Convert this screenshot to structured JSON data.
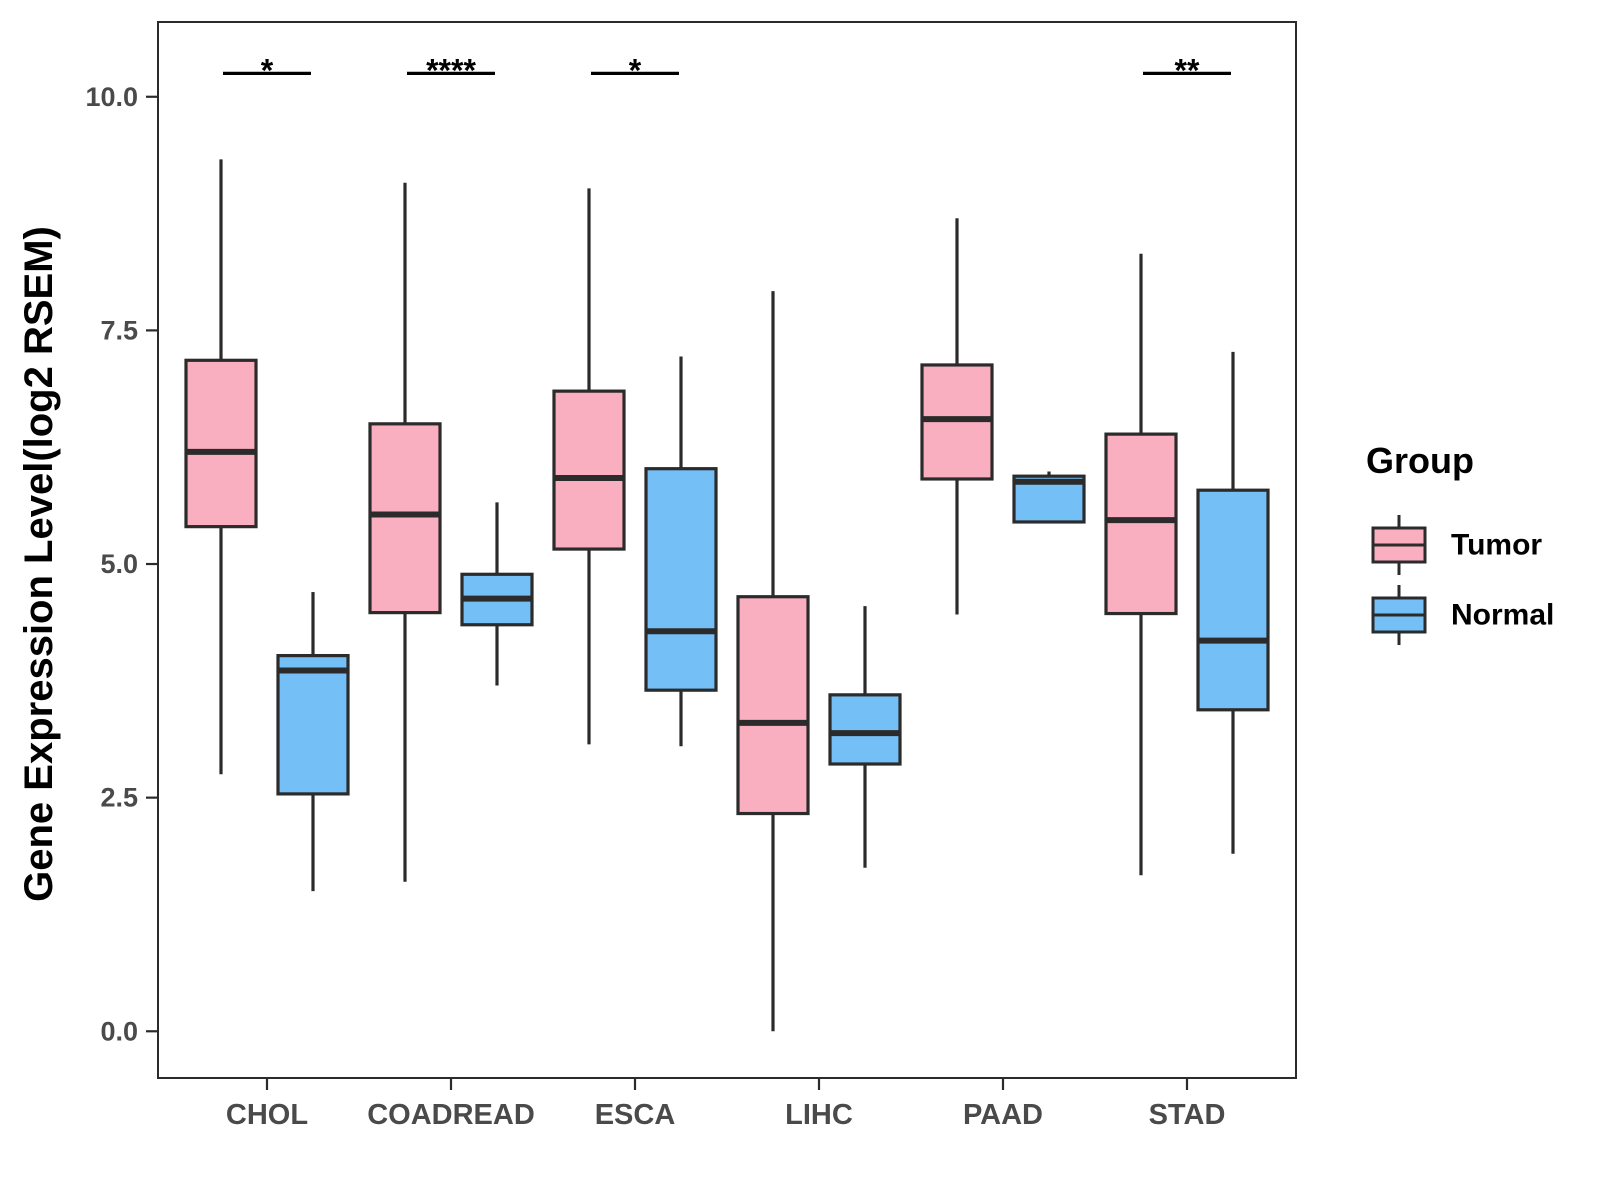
{
  "chart_data": {
    "type": "boxplot",
    "title": "",
    "xlabel": "",
    "ylabel": "Gene Expression Level(log2 RSEM)",
    "ylim": [
      -0.5,
      10.8
    ],
    "yticks": [
      0.0,
      2.5,
      5.0,
      7.5,
      10.0
    ],
    "ytick_labels": [
      "0.0",
      "2.5",
      "5.0",
      "7.5",
      "10.0"
    ],
    "categories": [
      "CHOL",
      "COADREAD",
      "ESCA",
      "LIHC",
      "PAAD",
      "STAD"
    ],
    "legend": {
      "title": "Group",
      "placement": "right",
      "entries": [
        "Tumor",
        "Normal"
      ]
    },
    "series": [
      {
        "name": "Tumor",
        "color": "#FAAFC0",
        "boxes": [
          {
            "category": "CHOL",
            "whisker_low": 2.75,
            "q1": 5.4,
            "median": 6.2,
            "q3": 7.18,
            "whisker_high": 9.33
          },
          {
            "category": "COADREAD",
            "whisker_low": 1.6,
            "q1": 4.48,
            "median": 5.53,
            "q3": 6.5,
            "whisker_high": 9.08
          },
          {
            "category": "ESCA",
            "whisker_low": 3.07,
            "q1": 5.16,
            "median": 5.92,
            "q3": 6.85,
            "whisker_high": 9.02
          },
          {
            "category": "LIHC",
            "whisker_low": 0.0,
            "q1": 2.33,
            "median": 3.3,
            "q3": 4.65,
            "whisker_high": 7.92
          },
          {
            "category": "PAAD",
            "whisker_low": 4.46,
            "q1": 5.91,
            "median": 6.55,
            "q3": 7.13,
            "whisker_high": 8.7
          },
          {
            "category": "STAD",
            "whisker_low": 1.67,
            "q1": 4.47,
            "median": 5.47,
            "q3": 6.39,
            "whisker_high": 8.32
          }
        ]
      },
      {
        "name": "Normal",
        "color": "#75BFF7",
        "boxes": [
          {
            "category": "CHOL",
            "whisker_low": 1.5,
            "q1": 2.54,
            "median": 3.86,
            "q3": 4.02,
            "whisker_high": 4.7
          },
          {
            "category": "COADREAD",
            "whisker_low": 3.7,
            "q1": 4.35,
            "median": 4.63,
            "q3": 4.89,
            "whisker_high": 5.66
          },
          {
            "category": "ESCA",
            "whisker_low": 3.05,
            "q1": 3.65,
            "median": 4.28,
            "q3": 6.02,
            "whisker_high": 7.22
          },
          {
            "category": "LIHC",
            "whisker_low": 1.75,
            "q1": 2.86,
            "median": 3.19,
            "q3": 3.6,
            "whisker_high": 4.55
          },
          {
            "category": "PAAD",
            "whisker_low": 5.45,
            "q1": 5.45,
            "median": 5.88,
            "q3": 5.94,
            "whisker_high": 5.99
          },
          {
            "category": "STAD",
            "whisker_low": 1.9,
            "q1": 3.44,
            "median": 4.18,
            "q3": 5.79,
            "whisker_high": 7.27
          }
        ]
      }
    ],
    "annotations": [
      {
        "category": "CHOL",
        "text": "*",
        "y": 10.25
      },
      {
        "category": "COADREAD",
        "text": "****",
        "y": 10.25
      },
      {
        "category": "ESCA",
        "text": "*",
        "y": 10.25
      },
      {
        "category": "STAD",
        "text": "**",
        "y": 10.25
      }
    ]
  }
}
